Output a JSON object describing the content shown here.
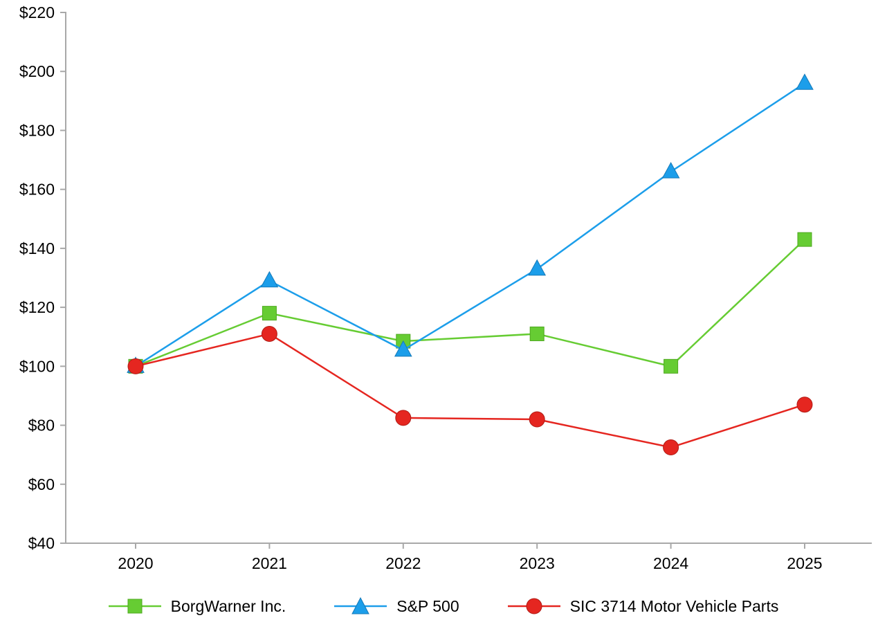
{
  "chart_data": {
    "type": "line",
    "title": "",
    "categories": [
      "2020",
      "2021",
      "2022",
      "2023",
      "2024",
      "2025"
    ],
    "y_tick_prefix": "$",
    "y_ticks": [
      40,
      60,
      80,
      100,
      120,
      140,
      160,
      180,
      200,
      220
    ],
    "ylim": [
      40,
      220
    ],
    "grid": false,
    "legend_position": "bottom",
    "axis_color": "#a8a8a8",
    "series": [
      {
        "name": "BorgWarner Inc.",
        "marker": "square",
        "color": "#66CC33",
        "edge_color": "#4EA81F",
        "values": [
          100,
          118,
          108.5,
          111,
          100,
          143
        ]
      },
      {
        "name": "S&P 500",
        "marker": "triangle",
        "color": "#1C9EEA",
        "edge_color": "#1579B8",
        "values": [
          100,
          129,
          105.5,
          133,
          166,
          196
        ]
      },
      {
        "name": "SIC 3714 Motor Vehicle Parts",
        "marker": "circle",
        "color": "#E52620",
        "edge_color": "#B01B15",
        "values": [
          100,
          111,
          82.5,
          82,
          72.5,
          87
        ]
      }
    ]
  }
}
